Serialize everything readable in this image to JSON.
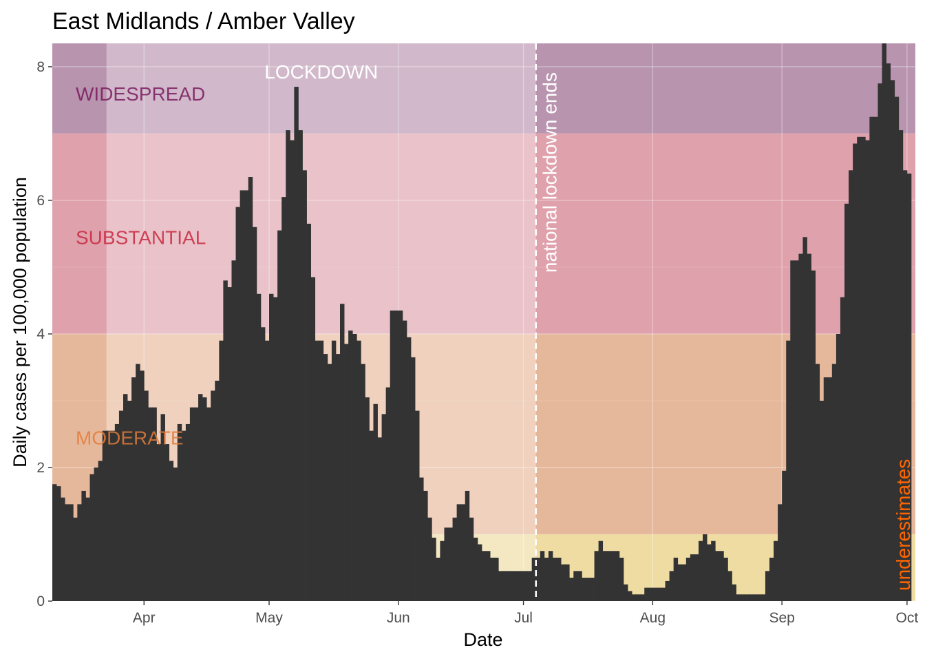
{
  "chart_data": {
    "type": "bar",
    "title": "East Midlands / Amber Valley",
    "xlabel": "Date",
    "ylabel": "Daily cases per 100,000 population",
    "x_start": "2020-03-10",
    "x_end": "2020-10-03",
    "ylim": [
      0,
      8.35
    ],
    "y_ticks": [
      {
        "value": 0,
        "label": "0"
      },
      {
        "value": 2,
        "label": "2"
      },
      {
        "value": 4,
        "label": "4"
      },
      {
        "value": 6,
        "label": "6"
      },
      {
        "value": 8,
        "label": "8"
      }
    ],
    "x_ticks": [
      {
        "date": "2020-04-01",
        "label": "Apr"
      },
      {
        "date": "2020-05-01",
        "label": "May"
      },
      {
        "date": "2020-06-01",
        "label": "Jun"
      },
      {
        "date": "2020-07-01",
        "label": "Jul"
      },
      {
        "date": "2020-08-01",
        "label": "Aug"
      },
      {
        "date": "2020-09-01",
        "label": "Sep"
      },
      {
        "date": "2020-10-01",
        "label": "Oct"
      }
    ],
    "grid": true,
    "bar_color": "#333333",
    "bands": [
      {
        "label": "MODERATE",
        "from": 1,
        "to": 4,
        "color": "#e07b39",
        "text_color": "#e07b39"
      },
      {
        "label": "SUBSTANTIAL",
        "from": 4,
        "to": 7,
        "color": "#d0465f",
        "text_color": "#c8283f"
      },
      {
        "label": "WIDESPREAD",
        "from": 7,
        "to": 8.35,
        "color": "#7a2b67",
        "text_color": "#7a1a5e"
      },
      {
        "label": "",
        "from": 0,
        "to": 1,
        "color": "#f2c94c",
        "text_color": "#000000"
      }
    ],
    "annotations": {
      "lockdown": {
        "label": "LOCKDOWN",
        "from": "2020-03-23",
        "to": "2020-07-04"
      },
      "lockdown_end": {
        "label": "national lockdown ends",
        "date": "2020-07-04"
      },
      "underestimates": {
        "label": "underestimates",
        "color": "#ff6600"
      }
    },
    "values": [
      1.75,
      1.72,
      1.55,
      1.45,
      1.45,
      1.25,
      1.45,
      1.65,
      1.55,
      1.9,
      2.0,
      2.1,
      2.55,
      2.55,
      2.55,
      2.65,
      2.85,
      3.1,
      3.0,
      3.35,
      3.55,
      3.45,
      3.15,
      2.9,
      2.9,
      2.35,
      2.8,
      2.35,
      2.1,
      2.0,
      2.65,
      2.55,
      2.65,
      2.9,
      2.9,
      3.1,
      3.05,
      2.9,
      3.15,
      3.3,
      3.9,
      4.8,
      4.7,
      5.1,
      5.9,
      6.15,
      6.15,
      6.35,
      5.6,
      4.6,
      4.1,
      3.9,
      4.6,
      4.55,
      5.55,
      6.05,
      7.05,
      6.9,
      7.7,
      7.05,
      6.45,
      5.65,
      4.85,
      3.9,
      3.9,
      3.7,
      3.55,
      3.9,
      3.7,
      4.45,
      3.85,
      4.05,
      4.0,
      3.9,
      3.55,
      3.05,
      2.55,
      2.95,
      2.45,
      2.8,
      3.2,
      4.35,
      4.35,
      4.35,
      4.2,
      3.95,
      3.65,
      2.85,
      1.85,
      1.65,
      1.25,
      0.95,
      0.65,
      0.9,
      1.1,
      1.1,
      1.25,
      1.45,
      1.45,
      1.65,
      1.25,
      0.95,
      0.85,
      0.75,
      0.75,
      0.65,
      0.65,
      0.45,
      0.45,
      0.45,
      0.45,
      0.45,
      0.45,
      0.45,
      0.45,
      0.65,
      0.65,
      0.75,
      0.65,
      0.75,
      0.65,
      0.65,
      0.55,
      0.55,
      0.35,
      0.45,
      0.45,
      0.35,
      0.35,
      0.35,
      0.75,
      0.9,
      0.75,
      0.75,
      0.75,
      0.75,
      0.65,
      0.25,
      0.15,
      0.1,
      0.1,
      0.1,
      0.2,
      0.2,
      0.2,
      0.2,
      0.2,
      0.3,
      0.45,
      0.65,
      0.55,
      0.55,
      0.65,
      0.7,
      0.7,
      0.9,
      1.0,
      0.85,
      0.9,
      0.75,
      0.75,
      0.65,
      0.45,
      0.25,
      0.1,
      0.1,
      0.1,
      0.1,
      0.1,
      0.1,
      0.1,
      0.45,
      0.65,
      0.9,
      1.45,
      1.95,
      3.9,
      5.1,
      5.1,
      5.2,
      5.45,
      5.2,
      4.95,
      3.55,
      3.0,
      3.35,
      3.35,
      3.55,
      4.0,
      4.55,
      5.95,
      6.45,
      6.85,
      6.95,
      6.95,
      6.9,
      7.25,
      7.25,
      7.75,
      8.35,
      8.05,
      7.8,
      7.55,
      7.05,
      6.45,
      6.4
    ]
  }
}
